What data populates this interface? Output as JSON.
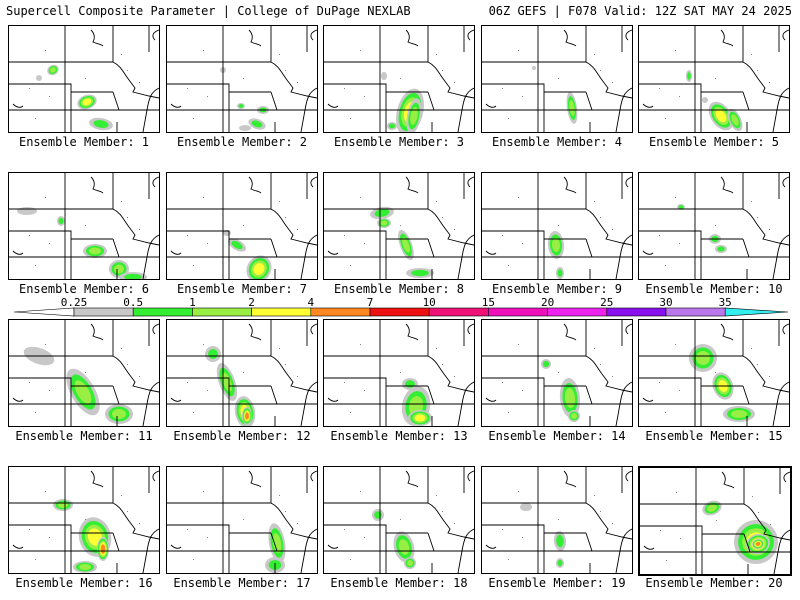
{
  "header": {
    "left": "Supercell Composite Parameter | College of DuPage NEXLAB",
    "right": "06Z GEFS | F078 Valid: 12Z SAT MAY 24 2025"
  },
  "colors": {
    "c025": "#c8c8c8",
    "c05": "#33ee33",
    "c1": "#99ee44",
    "c2": "#ffff33",
    "c4": "#ff8822",
    "c7": "#ee1111",
    "c10": "#ee1177",
    "c15": "#ee11bb",
    "c20": "#ee22ee",
    "c25": "#8811ee",
    "c30": "#bb77ee",
    "c35": "#33eeee",
    "grid_lines": "#000000"
  },
  "colorbar": {
    "ticks": [
      "0.25",
      "0.5",
      "1",
      "2",
      "4",
      "7",
      "10",
      "15",
      "20",
      "25",
      "30",
      "35"
    ]
  },
  "panels": [
    {
      "label": "Ensemble Member: 1"
    },
    {
      "label": "Ensemble Member: 2"
    },
    {
      "label": "Ensemble Member: 3"
    },
    {
      "label": "Ensemble Member: 4"
    },
    {
      "label": "Ensemble Member: 5"
    },
    {
      "label": "Ensemble Member: 6"
    },
    {
      "label": "Ensemble Member: 7"
    },
    {
      "label": "Ensemble Member: 8"
    },
    {
      "label": "Ensemble Member: 9"
    },
    {
      "label": "Ensemble Member: 10"
    },
    {
      "label": "Ensemble Member: 11"
    },
    {
      "label": "Ensemble Member: 12"
    },
    {
      "label": "Ensemble Member: 13"
    },
    {
      "label": "Ensemble Member: 14"
    },
    {
      "label": "Ensemble Member: 15"
    },
    {
      "label": "Ensemble Member: 16"
    },
    {
      "label": "Ensemble Member: 17"
    },
    {
      "label": "Ensemble Member: 18"
    },
    {
      "label": "Ensemble Member: 19"
    },
    {
      "label": "Ensemble Member: 20"
    }
  ]
}
